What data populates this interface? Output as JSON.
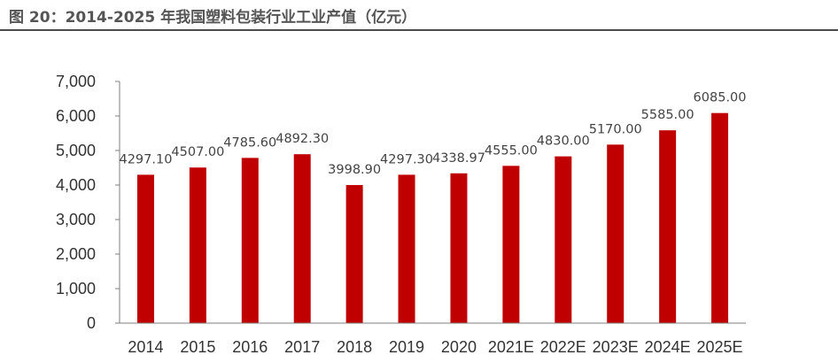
{
  "figure": {
    "title": "图 20：2014-2025 年我国塑料包装行业工业产值（亿元）"
  },
  "chart_data": {
    "type": "bar",
    "title": "",
    "xlabel": "",
    "ylabel": "",
    "categories": [
      "2014",
      "2015",
      "2016",
      "2017",
      "2018",
      "2019",
      "2020",
      "2021E",
      "2022E",
      "2023E",
      "2024E",
      "2025E"
    ],
    "values": [
      4297.1,
      4507.0,
      4785.6,
      4892.3,
      3998.9,
      4297.3,
      4338.97,
      4555.0,
      4830.0,
      5170.0,
      5585.0,
      6085.0
    ],
    "value_labels": [
      "4297.10",
      "4507.00",
      "4785.60",
      "4892.30",
      "3998.90",
      "4297.30",
      "4338.97",
      "4555.00",
      "4830.00",
      "5170.00",
      "5585.00",
      "6085.00"
    ],
    "ylim": [
      0,
      7000
    ],
    "yticks": [
      0,
      1000,
      2000,
      3000,
      4000,
      5000,
      6000,
      7000
    ],
    "ytick_labels": [
      "0",
      "1,000",
      "2,000",
      "3,000",
      "4,000",
      "5,000",
      "6,000",
      "7,000"
    ],
    "grid": false,
    "legend": "none",
    "bar_color": "#C00000",
    "axis_color": "#7F7F7F"
  }
}
